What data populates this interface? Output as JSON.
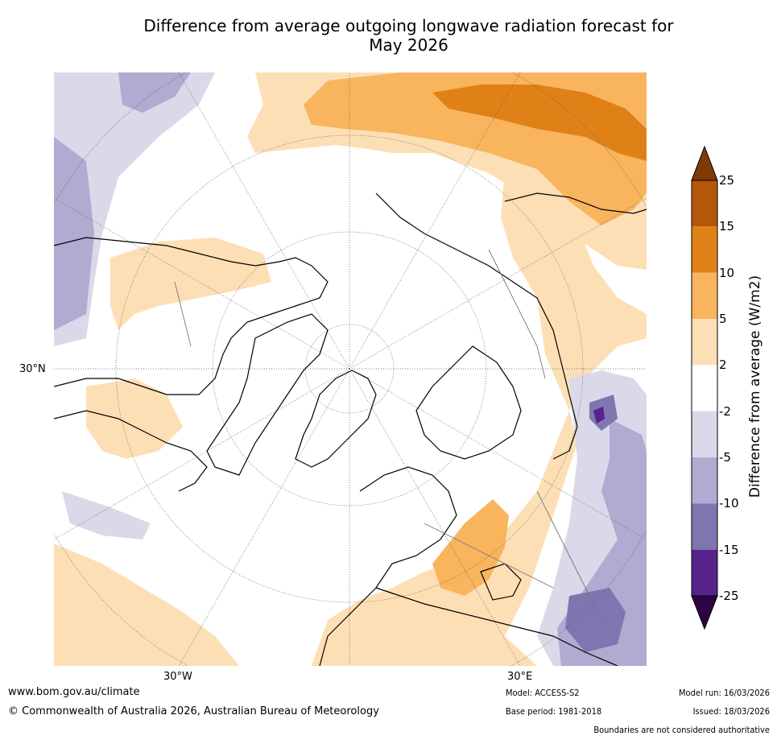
{
  "title_line1": "Difference from average outgoing longwave radiation forecast for",
  "title_line2": "May 2026",
  "map": {
    "lat_label": "30°N",
    "lon_label_west": "30°W",
    "lon_label_east": "30°E"
  },
  "colorbar": {
    "title": "Difference from average (W/m2)",
    "ticks": [
      "25",
      "15",
      "10",
      "5",
      "2",
      "-2",
      "-5",
      "-10",
      "-15",
      "-25"
    ],
    "colors": [
      "#b3570a",
      "#e08117",
      "#f9b45e",
      "#fddfb5",
      "#ffffff",
      "#d9d9ea",
      "#b1aad1",
      "#8075b0",
      "#56238c"
    ],
    "extend_high_color": "#7e3b08",
    "extend_low_color": "#2c0445"
  },
  "footer": {
    "url": "www.bom.gov.au/climate",
    "copyright": "© Commonwealth of Australia 2026, Australian Bureau of Meteorology",
    "model": "Model: ACCESS-S2",
    "base_period": "Base period: 1981-2018",
    "model_run": "Model run: 16/03/2026",
    "issued": "Issued: 18/03/2026",
    "disclaimer": "Boundaries are not considered authoritative"
  }
}
